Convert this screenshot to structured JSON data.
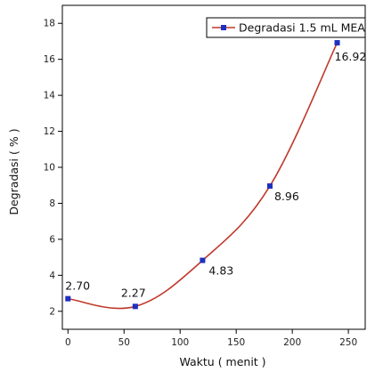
{
  "chart_data": {
    "type": "line",
    "xlabel": "Waktu ( menit )",
    "ylabel": "Degradasi ( % )",
    "xlim": [
      -5,
      265
    ],
    "ylim": [
      1,
      19
    ],
    "x_ticks": [
      0,
      50,
      100,
      150,
      200,
      250
    ],
    "y_ticks": [
      2,
      4,
      6,
      8,
      10,
      12,
      14,
      16,
      18
    ],
    "grid": false,
    "legend_position": "top-right",
    "series": [
      {
        "name": "Degradasi 1.5 mL MEA",
        "line_color": "#c0392b",
        "marker_color": "#1f2fbf",
        "x": [
          0,
          60,
          120,
          180,
          240
        ],
        "y": [
          2.7,
          2.27,
          4.83,
          8.96,
          16.92
        ],
        "data_labels": [
          "2.70",
          "2.27",
          "4.83",
          "8.96",
          "16.92"
        ]
      }
    ]
  }
}
